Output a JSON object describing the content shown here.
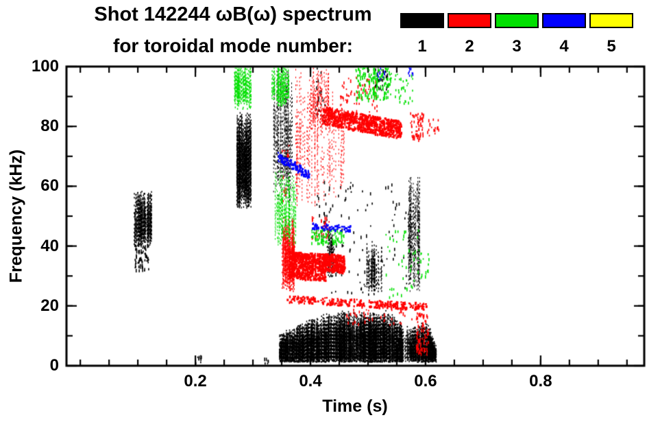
{
  "legend": {
    "items": [
      {
        "label": "1",
        "color": "#000000"
      },
      {
        "label": "2",
        "color": "#ff0000"
      },
      {
        "label": "3",
        "color": "#00e000"
      },
      {
        "label": "4",
        "color": "#0000ff"
      },
      {
        "label": "5",
        "color": "#ffff00"
      }
    ]
  },
  "chart_data": {
    "type": "scatter",
    "title": "Shot 142244 ωB(ω) spectrum",
    "subtitle": "for toroidal mode number:",
    "xlabel": "Time (s)",
    "ylabel": "Frequency (kHz)",
    "xlim": [
      -0.024,
      0.98
    ],
    "ylim": [
      0,
      100
    ],
    "grid": false,
    "legend_position": "top-right",
    "x_ticks": [
      {
        "value": 0.2,
        "label": "0.2"
      },
      {
        "value": 0.4,
        "label": "0.4"
      },
      {
        "value": 0.6,
        "label": "0.6"
      },
      {
        "value": 0.8,
        "label": "0.8"
      }
    ],
    "x_minor_step": 0.05,
    "y_ticks": [
      {
        "value": 0,
        "label": "0"
      },
      {
        "value": 20,
        "label": "20"
      },
      {
        "value": 40,
        "label": "40"
      },
      {
        "value": 60,
        "label": "60"
      },
      {
        "value": 80,
        "label": "80"
      },
      {
        "value": 100,
        "label": "100"
      }
    ],
    "y_minor_step": 10,
    "series": [
      {
        "name": "n=1",
        "mode": 1,
        "color": "#000000",
        "clusters": [
          {
            "style": "strands",
            "t": [
              0.093,
              0.123
            ],
            "f": [
              40,
              59
            ],
            "n": 110
          },
          {
            "style": "scatter",
            "t": [
              0.094,
              0.118
            ],
            "f": [
              32,
              41
            ],
            "n": 70
          },
          {
            "style": "strands",
            "t": [
              0.271,
              0.296
            ],
            "f": [
              53,
              85
            ],
            "n": 150
          },
          {
            "style": "strands",
            "t": [
              0.335,
              0.368
            ],
            "f": [
              55,
              101
            ],
            "n": 60,
            "thin": true
          },
          {
            "style": "scatter",
            "t": [
              0.408,
              0.425
            ],
            "f": [
              82,
              101
            ],
            "n": 25
          },
          {
            "style": "scatter",
            "t": [
              0.51,
              0.533
            ],
            "f": [
              92,
              101
            ],
            "n": 35
          },
          {
            "style": "band",
            "t": [
              0.345,
              0.618
            ],
            "f": [
              1.5,
              19
            ],
            "n": 1500,
            "envelope": [
              [
                0.345,
                11
              ],
              [
                0.375,
                14
              ],
              [
                0.41,
                17
              ],
              [
                0.45,
                19
              ],
              [
                0.5,
                18
              ],
              [
                0.53,
                19
              ],
              [
                0.555,
                16
              ],
              [
                0.572,
                13
              ],
              [
                0.59,
                15
              ],
              [
                0.605,
                14
              ],
              [
                0.618,
                7
              ]
            ],
            "gaps": [
              [
                0.56,
                0.572
              ]
            ]
          },
          {
            "style": "scatter",
            "t": [
              0.41,
              0.57
            ],
            "f": [
              24,
              62
            ],
            "n": 120
          },
          {
            "style": "strands",
            "t": [
              0.428,
              0.441
            ],
            "f": [
              30,
              47
            ],
            "n": 22
          },
          {
            "style": "strands",
            "t": [
              0.497,
              0.523
            ],
            "f": [
              24,
              42
            ],
            "n": 40
          },
          {
            "style": "strands",
            "t": [
              0.568,
              0.589
            ],
            "f": [
              25,
              66
            ],
            "n": 50,
            "thin": true
          },
          {
            "style": "scatter",
            "t": [
              0.198,
              0.212
            ],
            "f": [
              1,
              4
            ],
            "n": 10
          },
          {
            "style": "scatter",
            "t": [
              0.318,
              0.326
            ],
            "f": [
              1,
              3
            ],
            "n": 6
          }
        ]
      },
      {
        "name": "n=2",
        "mode": 2,
        "color": "#ff0000",
        "clusters": [
          {
            "style": "ridge",
            "t": [
              0.42,
              0.557
            ],
            "f": [
              84,
              79
            ],
            "th": 6,
            "n": 800
          },
          {
            "style": "strands",
            "t": [
              0.398,
              0.432
            ],
            "f": [
              78,
              100
            ],
            "n": 45,
            "thin": true
          },
          {
            "style": "scatter",
            "t": [
              0.45,
              0.515
            ],
            "f": [
              85,
              97
            ],
            "n": 60
          },
          {
            "style": "strands",
            "t": [
              0.373,
              0.418
            ],
            "f": [
              53,
              100
            ],
            "n": 28,
            "thin": true
          },
          {
            "style": "strands",
            "t": [
              0.418,
              0.458
            ],
            "f": [
              55,
              92
            ],
            "n": 18,
            "thin": true
          },
          {
            "style": "scatter",
            "t": [
              0.573,
              0.596
            ],
            "f": [
              76,
              85
            ],
            "n": 60
          },
          {
            "style": "scatter",
            "t": [
              0.6,
              0.622
            ],
            "f": [
              77,
              83
            ],
            "n": 18
          },
          {
            "style": "strands",
            "t": [
              0.35,
              0.372
            ],
            "f": [
              25,
              51
            ],
            "n": 80
          },
          {
            "style": "ridge",
            "t": [
              0.362,
              0.425
            ],
            "f": [
              34,
              33
            ],
            "th": 9,
            "n": 700
          },
          {
            "style": "ridge",
            "t": [
              0.425,
              0.458
            ],
            "f": [
              35,
              34
            ],
            "th": 6,
            "n": 250
          },
          {
            "style": "scatter",
            "t": [
              0.4,
              0.432
            ],
            "f": [
              43,
              50
            ],
            "n": 35
          },
          {
            "style": "ridge",
            "t": [
              0.358,
              0.6
            ],
            "f": [
              22.5,
              20
            ],
            "th": 2.4,
            "n": 300
          },
          {
            "style": "scatter",
            "t": [
              0.46,
              0.585
            ],
            "f": [
              14,
              19.5
            ],
            "n": 40
          },
          {
            "style": "scatter",
            "t": [
              0.583,
              0.605
            ],
            "f": [
              4,
              18
            ],
            "n": 90
          },
          {
            "style": "scatter",
            "t": [
              0.35,
              0.362
            ],
            "f": [
              55,
              75
            ],
            "n": 20
          }
        ]
      },
      {
        "name": "n=3",
        "mode": 3,
        "color": "#00e000",
        "clusters": [
          {
            "style": "strands",
            "t": [
              0.266,
              0.296
            ],
            "f": [
              86,
              102
            ],
            "n": 60
          },
          {
            "style": "strands",
            "t": [
              0.332,
              0.362
            ],
            "f": [
              87,
              102
            ],
            "n": 55
          },
          {
            "style": "strands",
            "t": [
              0.338,
              0.374
            ],
            "f": [
              40,
              66
            ],
            "n": 70,
            "thin": true
          },
          {
            "style": "scatter",
            "t": [
              0.4,
              0.458
            ],
            "f": [
              41,
              46
            ],
            "n": 90
          },
          {
            "style": "scatter",
            "t": [
              0.478,
              0.54
            ],
            "f": [
              89,
              102
            ],
            "n": 220
          },
          {
            "style": "scatter",
            "t": [
              0.545,
              0.578
            ],
            "f": [
              88,
              98
            ],
            "n": 30
          },
          {
            "style": "scatter",
            "t": [
              0.53,
              0.592
            ],
            "f": [
              23,
              46
            ],
            "n": 45
          },
          {
            "style": "scatter",
            "t": [
              0.59,
              0.605
            ],
            "f": [
              30,
              42
            ],
            "n": 12
          }
        ]
      },
      {
        "name": "n=4",
        "mode": 4,
        "color": "#0000ff",
        "clusters": [
          {
            "style": "ridge",
            "t": [
              0.343,
              0.397
            ],
            "f": [
              70,
              64
            ],
            "th": 3,
            "n": 110
          },
          {
            "style": "ridge",
            "t": [
              0.402,
              0.468
            ],
            "f": [
              47,
              46
            ],
            "th": 2,
            "n": 70
          },
          {
            "style": "scatter",
            "t": [
              0.515,
              0.528
            ],
            "f": [
              96,
              101
            ],
            "n": 10
          },
          {
            "style": "scatter",
            "t": [
              0.566,
              0.578
            ],
            "f": [
              96,
              101
            ],
            "n": 10
          }
        ]
      },
      {
        "name": "n=5",
        "mode": 5,
        "color": "#ffff00",
        "clusters": []
      }
    ]
  }
}
